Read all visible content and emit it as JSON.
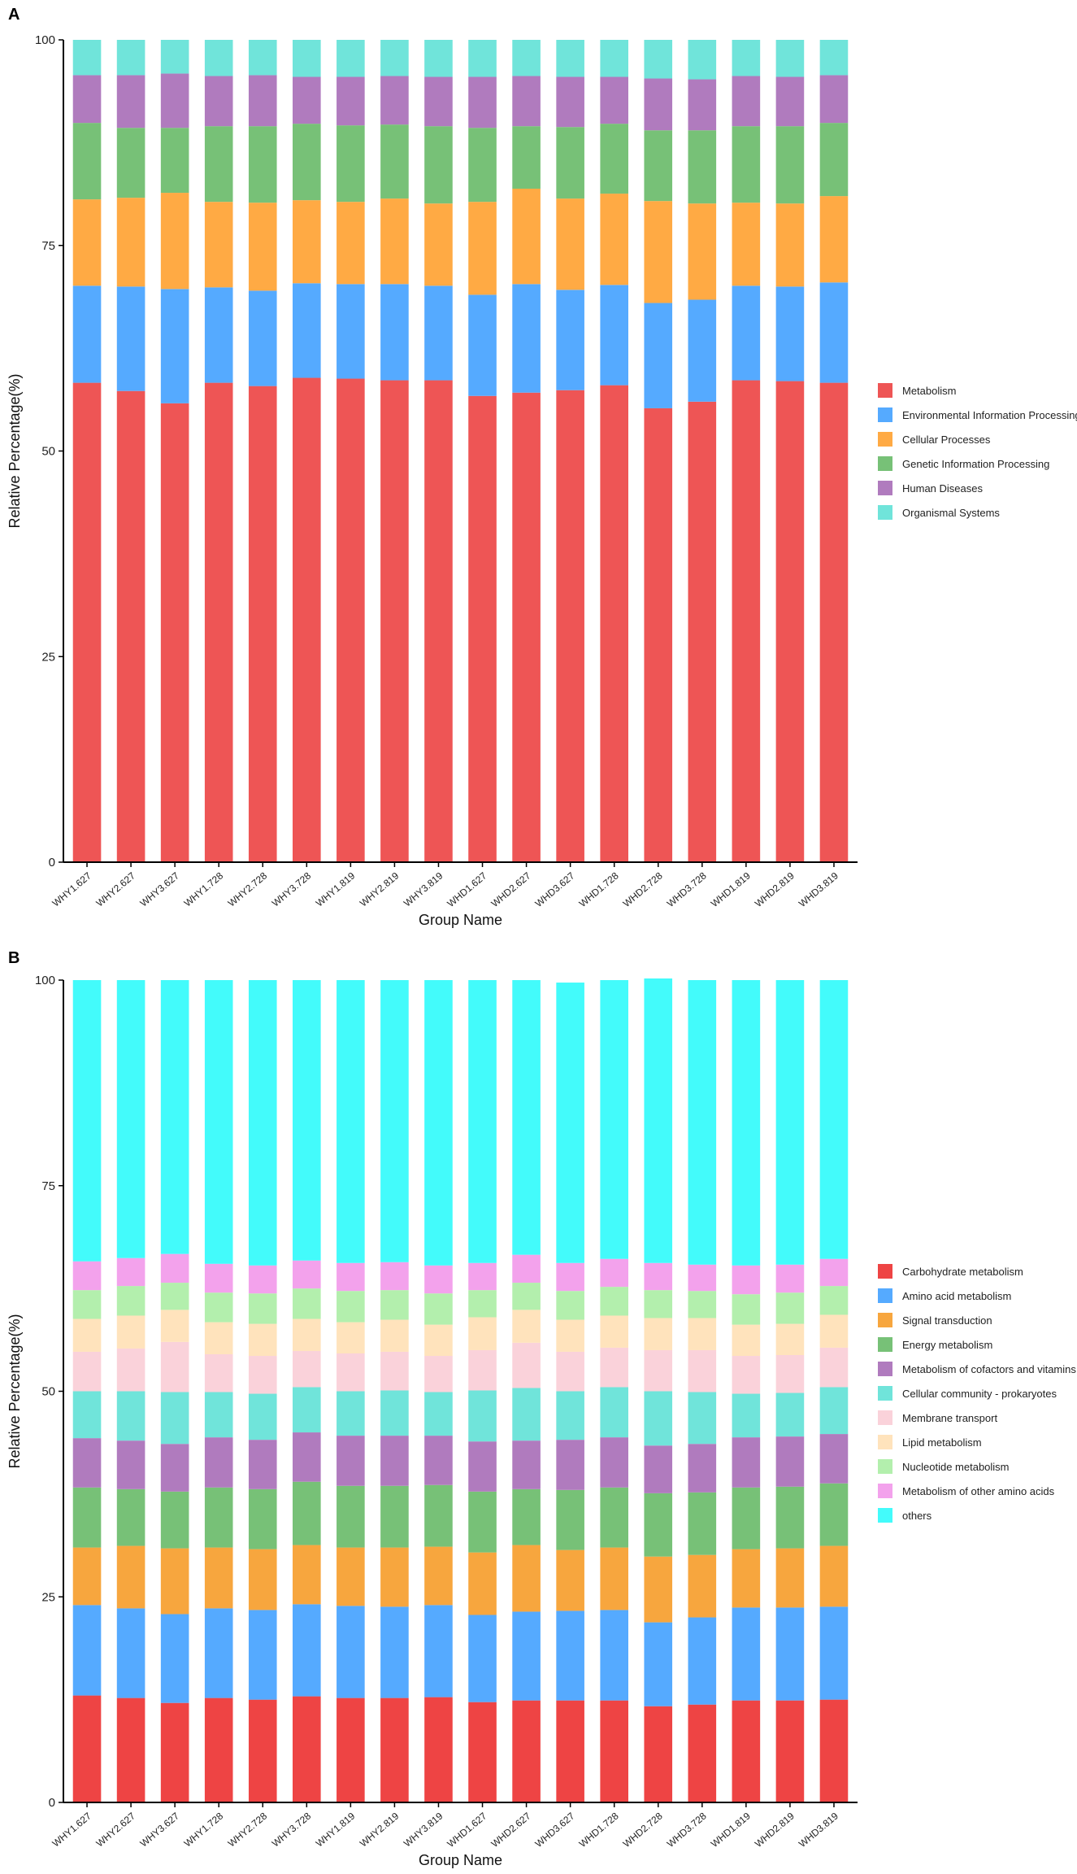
{
  "chart_data": [
    {
      "panel": "A",
      "type": "bar",
      "stacked": true,
      "xlabel": "Group Name",
      "ylabel": "Relative Percentage(%)",
      "ylim": [
        0,
        100
      ],
      "yticks": [
        "0",
        "25",
        "50",
        "75",
        "100"
      ],
      "categories": [
        "WHY1.627",
        "WHY2.627",
        "WHY3.627",
        "WHY1.728",
        "WHY2.728",
        "WHY3.728",
        "WHY1.819",
        "WHY2.819",
        "WHY3.819",
        "WHD1.627",
        "WHD2.627",
        "WHD3.627",
        "WHD1.728",
        "WHD2.728",
        "WHD3.728",
        "WHD1.819",
        "WHD2.819",
        "WHD3.819"
      ],
      "series": [
        {
          "name": "Metabolism",
          "color": "#EE5555",
          "values": [
            58.3,
            57.3,
            55.8,
            58.3,
            57.9,
            58.9,
            58.8,
            58.6,
            58.6,
            56.7,
            57.1,
            57.4,
            58.0,
            55.2,
            56.0,
            58.6,
            58.5,
            58.3
          ]
        },
        {
          "name": "Environmental Information Processing",
          "color": "#55AAFF",
          "values": [
            11.8,
            12.7,
            13.9,
            11.6,
            11.6,
            11.5,
            11.5,
            11.7,
            11.5,
            12.3,
            13.2,
            12.2,
            12.2,
            12.8,
            12.4,
            11.5,
            11.5,
            12.2
          ]
        },
        {
          "name": "Cellular Processes",
          "color": "#FFAA44",
          "values": [
            10.5,
            10.8,
            11.7,
            10.4,
            10.7,
            10.1,
            10.0,
            10.4,
            10.0,
            11.3,
            11.6,
            11.1,
            11.1,
            12.4,
            11.7,
            10.1,
            10.1,
            10.5
          ]
        },
        {
          "name": "Genetic Information Processing",
          "color": "#77C177",
          "values": [
            9.3,
            8.5,
            7.9,
            9.2,
            9.3,
            9.3,
            9.3,
            9.0,
            9.4,
            9.0,
            7.6,
            8.7,
            8.5,
            8.6,
            8.9,
            9.3,
            9.4,
            8.9
          ]
        },
        {
          "name": "Human Diseases",
          "color": "#B07BBE",
          "values": [
            5.8,
            6.4,
            6.6,
            6.1,
            6.2,
            5.7,
            5.9,
            5.9,
            6.0,
            6.2,
            6.1,
            6.1,
            5.7,
            6.3,
            6.2,
            6.1,
            6.0,
            5.8
          ]
        },
        {
          "name": "Organismal Systems",
          "color": "#70E4DA",
          "values": [
            4.3,
            4.3,
            4.1,
            4.4,
            4.3,
            4.5,
            4.5,
            4.4,
            4.5,
            4.5,
            4.4,
            4.5,
            4.5,
            4.7,
            4.8,
            4.4,
            4.5,
            4.3
          ]
        }
      ]
    },
    {
      "panel": "B",
      "type": "bar",
      "stacked": true,
      "xlabel": "Group Name",
      "ylabel": "Relative Percentage(%)",
      "ylim": [
        0,
        100
      ],
      "yticks": [
        "0",
        "25",
        "50",
        "75",
        "100"
      ],
      "categories": [
        "WHY1.627",
        "WHY2.627",
        "WHY3.627",
        "WHY1.728",
        "WHY2.728",
        "WHY3.728",
        "WHY1.819",
        "WHY2.819",
        "WHY3.819",
        "WHD1.627",
        "WHD2.627",
        "WHD3.627",
        "WHD1.728",
        "WHD2.728",
        "WHD3.728",
        "WHD1.819",
        "WHD2.819",
        "WHD3.819"
      ],
      "series": [
        {
          "name": "Carbohydrate metabolism",
          "color": "#EE4444",
          "values": [
            13.0,
            12.7,
            12.1,
            12.7,
            12.5,
            12.9,
            12.7,
            12.7,
            12.8,
            12.2,
            12.4,
            12.4,
            12.4,
            11.7,
            11.9,
            12.4,
            12.4,
            12.5
          ]
        },
        {
          "name": "Amino acid metabolism",
          "color": "#55AAFF",
          "values": [
            11.0,
            10.9,
            10.8,
            10.9,
            10.9,
            11.2,
            11.2,
            11.1,
            11.2,
            10.6,
            10.8,
            10.9,
            11.0,
            10.2,
            10.6,
            11.3,
            11.3,
            11.3
          ]
        },
        {
          "name": "Signal transduction",
          "color": "#F7A63E",
          "values": [
            7.0,
            7.6,
            8.0,
            7.4,
            7.4,
            7.2,
            7.1,
            7.2,
            7.1,
            7.6,
            8.1,
            7.4,
            7.6,
            8.0,
            7.6,
            7.1,
            7.2,
            7.4
          ]
        },
        {
          "name": "Energy metabolism",
          "color": "#77C177",
          "values": [
            7.3,
            6.9,
            6.9,
            7.3,
            7.3,
            7.7,
            7.5,
            7.5,
            7.5,
            7.4,
            6.8,
            7.3,
            7.3,
            7.7,
            7.6,
            7.5,
            7.5,
            7.6
          ]
        },
        {
          "name": "Metabolism of cofactors and vitamins",
          "color": "#B07BBE",
          "values": [
            6.0,
            5.9,
            5.8,
            6.1,
            6.0,
            6.0,
            6.1,
            6.1,
            6.0,
            6.1,
            5.9,
            6.1,
            6.1,
            5.8,
            5.9,
            6.1,
            6.1,
            6.0
          ]
        },
        {
          "name": "Cellular community - prokaryotes",
          "color": "#70E4DA",
          "values": [
            5.7,
            6.0,
            6.3,
            5.5,
            5.6,
            5.5,
            5.4,
            5.5,
            5.3,
            6.2,
            6.4,
            5.9,
            6.1,
            6.6,
            6.3,
            5.3,
            5.3,
            5.7
          ]
        },
        {
          "name": "Membrane transport",
          "color": "#FAD2DA",
          "values": [
            4.8,
            5.2,
            6.1,
            4.6,
            4.6,
            4.4,
            4.6,
            4.7,
            4.4,
            4.9,
            5.5,
            4.8,
            4.8,
            5.0,
            5.1,
            4.6,
            4.6,
            4.8
          ]
        },
        {
          "name": "Lipid metabolism",
          "color": "#FFE3BC",
          "values": [
            4.0,
            4.0,
            3.9,
            3.9,
            3.9,
            3.9,
            3.8,
            3.9,
            3.8,
            4.0,
            4.0,
            3.9,
            3.9,
            3.9,
            3.9,
            3.8,
            3.8,
            4.0
          ]
        },
        {
          "name": "Nucleotide metabolism",
          "color": "#B3EFAD",
          "values": [
            3.5,
            3.6,
            3.3,
            3.6,
            3.7,
            3.7,
            3.8,
            3.6,
            3.8,
            3.3,
            3.3,
            3.5,
            3.5,
            3.4,
            3.3,
            3.7,
            3.8,
            3.5
          ]
        },
        {
          "name": "Metabolism of other amino acids",
          "color": "#F3A2EC",
          "values": [
            3.5,
            3.4,
            3.5,
            3.5,
            3.4,
            3.4,
            3.4,
            3.4,
            3.4,
            3.3,
            3.4,
            3.4,
            3.4,
            3.3,
            3.2,
            3.5,
            3.4,
            3.3
          ]
        },
        {
          "name": "others",
          "color": "#43FBFB",
          "values": [
            34.2,
            33.8,
            33.3,
            34.5,
            34.7,
            34.1,
            34.4,
            34.3,
            34.7,
            34.4,
            33.4,
            34.1,
            33.9,
            34.6,
            34.6,
            34.7,
            34.6,
            33.9
          ]
        }
      ]
    }
  ]
}
